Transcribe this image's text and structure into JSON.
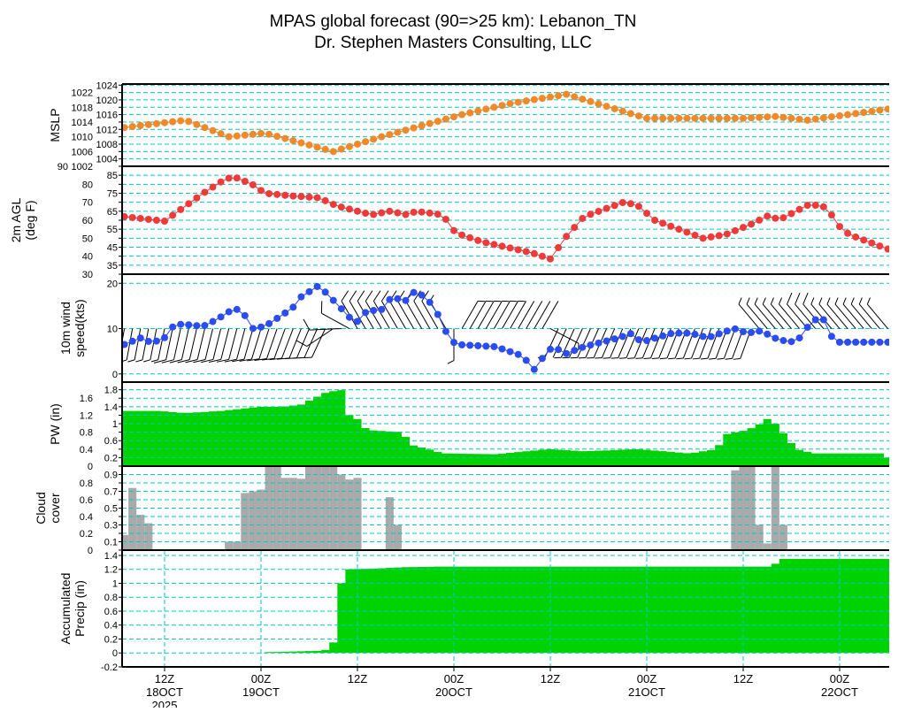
{
  "chart_data": {
    "type": "line",
    "title": "MPAS global forecast (90=>25 km): Lebanon_TN",
    "subtitle": "Dr. Stephen Masters Consulting, LLC",
    "time_start": "07Z 18OCT 2025",
    "time_step_hours": 1,
    "hours": 96,
    "x_ticks": [
      {
        "hour": 5,
        "label": "12Z",
        "date": "18OCT",
        "year": "2025"
      },
      {
        "hour": 17,
        "label": "00Z",
        "date": "19OCT",
        "year": ""
      },
      {
        "hour": 29,
        "label": "12Z",
        "date": "",
        "year": ""
      },
      {
        "hour": 41,
        "label": "00Z",
        "date": "20OCT",
        "year": ""
      },
      {
        "hour": 53,
        "label": "12Z",
        "date": "",
        "year": ""
      },
      {
        "hour": 65,
        "label": "00Z",
        "date": "21OCT",
        "year": ""
      },
      {
        "hour": 77,
        "label": "12Z",
        "date": "",
        "year": ""
      },
      {
        "hour": 89,
        "label": "00Z",
        "date": "22OCT",
        "year": ""
      }
    ],
    "panels": [
      {
        "key": "mslp",
        "ylabel": [
          "MSLP"
        ],
        "kind": "dots",
        "color": "#f0892a",
        "ylim": [
          1002,
          1024.3
        ],
        "yticks": [
          1002,
          1004,
          1006,
          1008,
          1010,
          1012,
          1014,
          1016,
          1018,
          1020,
          1022,
          1024
        ],
        "anchors": [
          [
            0,
            1012.5
          ],
          [
            7.6,
            1014.5
          ],
          [
            13,
            1010
          ],
          [
            17.5,
            1011
          ],
          [
            26,
            1006
          ],
          [
            32,
            1010
          ],
          [
            42,
            1016
          ],
          [
            48,
            1019
          ],
          [
            55,
            1021.5
          ],
          [
            65,
            1015
          ],
          [
            70,
            1015
          ],
          [
            77,
            1015
          ],
          [
            81,
            1015.5
          ],
          [
            85,
            1014.5
          ],
          [
            95,
            1017.5
          ]
        ]
      },
      {
        "key": "temp",
        "ylabel": [
          "2m AGL",
          "(deg F)"
        ],
        "kind": "dots",
        "color": "#f03a3a",
        "ylim": [
          30,
          90
        ],
        "yticks": [
          30,
          35,
          40,
          45,
          50,
          55,
          60,
          65,
          70,
          75,
          80,
          85,
          90
        ],
        "anchors": [
          [
            0,
            62
          ],
          [
            5,
            59.5
          ],
          [
            9.8,
            75
          ],
          [
            12.6,
            83
          ],
          [
            13.7,
            84
          ],
          [
            15.9,
            80
          ],
          [
            17.5,
            75
          ],
          [
            20.9,
            73.5
          ],
          [
            24.2,
            72.5
          ],
          [
            26.4,
            68
          ],
          [
            30.8,
            63
          ],
          [
            33,
            65
          ],
          [
            35.2,
            63
          ],
          [
            36.3,
            65
          ],
          [
            39.6,
            63
          ],
          [
            41.2,
            53
          ],
          [
            44.5,
            48
          ],
          [
            50.6,
            42
          ],
          [
            53,
            38.5
          ],
          [
            55,
            51
          ],
          [
            57.2,
            62
          ],
          [
            62.1,
            70
          ],
          [
            63.8,
            68.5
          ],
          [
            66,
            60
          ],
          [
            72,
            50
          ],
          [
            74.8,
            52
          ],
          [
            78.1,
            58
          ],
          [
            80.3,
            63
          ],
          [
            81.4,
            60
          ],
          [
            85.3,
            69
          ],
          [
            87.5,
            67
          ],
          [
            88.6,
            58
          ],
          [
            90.2,
            52
          ],
          [
            95,
            44
          ]
        ]
      },
      {
        "key": "wind",
        "ylabel": [
          "10m wind",
          "speed(kts)"
        ],
        "kind": "wind",
        "color": "#2a4cf0",
        "ylim": [
          -1.8,
          22
        ],
        "yticks": [
          0,
          10,
          20
        ],
        "anchors": [
          [
            0,
            6.5
          ],
          [
            2.1,
            8
          ],
          [
            3.2,
            7
          ],
          [
            4.9,
            7.5
          ],
          [
            5.4,
            10
          ],
          [
            7.1,
            11
          ],
          [
            9.8,
            10.5
          ],
          [
            11.5,
            12
          ],
          [
            13.7,
            14.5
          ],
          [
            14.8,
            13.5
          ],
          [
            15.9,
            10
          ],
          [
            17.5,
            10.5
          ],
          [
            20.9,
            14.5
          ],
          [
            22,
            17
          ],
          [
            24.2,
            19.5
          ],
          [
            26.4,
            15.5
          ],
          [
            28,
            12.5
          ],
          [
            29.1,
            11.5
          ],
          [
            30.2,
            14
          ],
          [
            31.9,
            14
          ],
          [
            33.5,
            17.5
          ],
          [
            34.6,
            15.5
          ],
          [
            36.3,
            18.5
          ],
          [
            38.5,
            15
          ],
          [
            40.1,
            9
          ],
          [
            41.2,
            6.5
          ],
          [
            46.2,
            6
          ],
          [
            49.5,
            4
          ],
          [
            51.1,
            0.8
          ],
          [
            52.2,
            4
          ],
          [
            53.3,
            6
          ],
          [
            55,
            4.5
          ],
          [
            57.2,
            6
          ],
          [
            61.6,
            8
          ],
          [
            63.2,
            9
          ],
          [
            64.3,
            7
          ],
          [
            68.2,
            9
          ],
          [
            70.4,
            9
          ],
          [
            72.6,
            8
          ],
          [
            75.9,
            10
          ],
          [
            77.5,
            9
          ],
          [
            79.2,
            9.5
          ],
          [
            81.4,
            7.5
          ],
          [
            83.6,
            7
          ],
          [
            85.3,
            11
          ],
          [
            86.4,
            12.5
          ],
          [
            87.5,
            11.5
          ],
          [
            88.2,
            7
          ],
          [
            90.2,
            7
          ],
          [
            95,
            7
          ]
        ],
        "direction_anchors": [
          [
            0,
            190
          ],
          [
            15,
            195
          ],
          [
            25,
            205
          ],
          [
            29,
            330
          ],
          [
            40,
            330
          ],
          [
            42,
            30
          ],
          [
            52,
            30
          ],
          [
            54,
            205
          ],
          [
            78,
            200
          ],
          [
            79,
            320
          ],
          [
            95,
            320
          ]
        ]
      },
      {
        "key": "pw",
        "ylabel": [
          "PW (in)"
        ],
        "kind": "area",
        "color": "#00d200",
        "ylim": [
          0,
          1.98
        ],
        "yticks": [
          0,
          0.2,
          0.4,
          0.6,
          0.8,
          1,
          1.2,
          1.4,
          1.6,
          1.8
        ],
        "anchors": [
          [
            0,
            1.3
          ],
          [
            4.3,
            1.3
          ],
          [
            7.6,
            1.25
          ],
          [
            12,
            1.3
          ],
          [
            17,
            1.4
          ],
          [
            19.7,
            1.4
          ],
          [
            22,
            1.45
          ],
          [
            23.6,
            1.6
          ],
          [
            25.3,
            1.75
          ],
          [
            27.5,
            1.8
          ],
          [
            28,
            1.2
          ],
          [
            29.1,
            1.1
          ],
          [
            30.2,
            0.85
          ],
          [
            34.6,
            0.8
          ],
          [
            35.7,
            0.5
          ],
          [
            37.4,
            0.42
          ],
          [
            39.6,
            0.3
          ],
          [
            46.2,
            0.28
          ],
          [
            52.8,
            0.4
          ],
          [
            57.2,
            0.35
          ],
          [
            63.8,
            0.4
          ],
          [
            70.4,
            0.3
          ],
          [
            73.7,
            0.4
          ],
          [
            74.8,
            0.75
          ],
          [
            77.5,
            0.85
          ],
          [
            79.2,
            1.0
          ],
          [
            80.3,
            1.15
          ],
          [
            81.9,
            0.8
          ],
          [
            83.6,
            0.4
          ],
          [
            85.8,
            0.3
          ],
          [
            94.6,
            0.3
          ],
          [
            95,
            0.2
          ]
        ]
      },
      {
        "key": "cloud",
        "ylabel": [
          "Cloud",
          "cover"
        ],
        "kind": "bars",
        "color": "#aaaaaa",
        "ylim": [
          0,
          1
        ],
        "yticks": [
          0,
          0.1,
          0.2,
          0.3,
          0.4,
          0.5,
          0.6,
          0.7,
          0.8,
          0.9
        ],
        "bars": [
          [
            0,
            0.18
          ],
          [
            1,
            0.74
          ],
          [
            2,
            0.42
          ],
          [
            3,
            0.32
          ],
          [
            13,
            0.1
          ],
          [
            14,
            0.1
          ],
          [
            15,
            0.68
          ],
          [
            16,
            0.7
          ],
          [
            17,
            0.72
          ],
          [
            18,
            1.0
          ],
          [
            19,
            1.0
          ],
          [
            20,
            0.86
          ],
          [
            21,
            0.86
          ],
          [
            22,
            0.85
          ],
          [
            23,
            1.0
          ],
          [
            24,
            1.0
          ],
          [
            25,
            1.0
          ],
          [
            26,
            1.0
          ],
          [
            27,
            0.9
          ],
          [
            28,
            0.84
          ],
          [
            29,
            0.86
          ],
          [
            33,
            0.63
          ],
          [
            34,
            0.3
          ],
          [
            76,
            0.95
          ],
          [
            77,
            1.0
          ],
          [
            78,
            1.0
          ],
          [
            79,
            0.3
          ],
          [
            80,
            0.08
          ],
          [
            81,
            1.0
          ],
          [
            82,
            0.3
          ]
        ]
      },
      {
        "key": "precip",
        "ylabel": [
          "Accumulated",
          "Precip (in)"
        ],
        "kind": "area",
        "color": "#00d200",
        "ylim": [
          -0.2,
          1.476
        ],
        "yticks": [
          -0.2,
          0,
          0.2,
          0.4,
          0.6,
          0.8,
          1,
          1.2,
          1.4
        ],
        "anchors": [
          [
            0,
            0
          ],
          [
            17,
            0
          ],
          [
            17.1,
            0.01
          ],
          [
            20.9,
            0.02
          ],
          [
            24.2,
            0.03
          ],
          [
            25.5,
            0.05
          ],
          [
            25.6,
            0.15
          ],
          [
            26.4,
            0.15
          ],
          [
            26.5,
            0.8
          ],
          [
            27.5,
            1.2
          ],
          [
            30.8,
            1.21
          ],
          [
            34.6,
            1.23
          ],
          [
            39.6,
            1.24
          ],
          [
            80.3,
            1.24
          ],
          [
            80.4,
            1.28
          ],
          [
            81.4,
            1.28
          ],
          [
            81.5,
            1.35
          ],
          [
            95,
            1.35
          ]
        ]
      }
    ]
  }
}
